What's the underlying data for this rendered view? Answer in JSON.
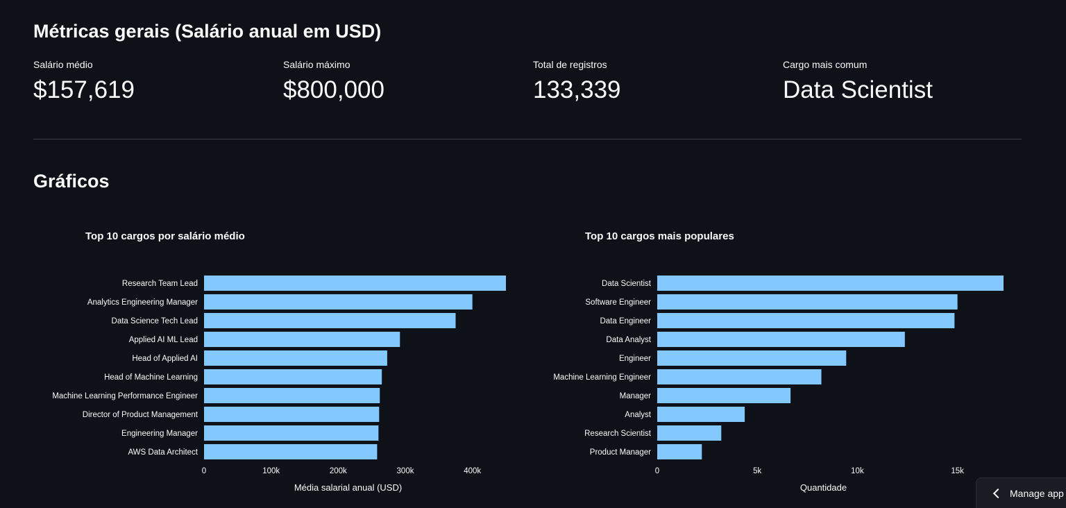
{
  "metrics_section": {
    "title": "Métricas gerais (Salário anual em USD)",
    "metrics": [
      {
        "label": "Salário médio",
        "value": "$157,619"
      },
      {
        "label": "Salário máximo",
        "value": "$800,000"
      },
      {
        "label": "Total de registros",
        "value": "133,339"
      },
      {
        "label": "Cargo mais comum",
        "value": "Data Scientist"
      }
    ]
  },
  "graphs_section": {
    "title": "Gráficos"
  },
  "manage_app": {
    "label": "Manage app",
    "icon": "chevron-left-icon"
  },
  "colors": {
    "background": "#0e1117",
    "bar": "#83c9ff",
    "text": "#fafafa"
  },
  "chart_data": [
    {
      "type": "bar",
      "orientation": "horizontal",
      "title": "Top 10 cargos por salário médio",
      "xlabel": "Média salarial anual (USD)",
      "ylabel": "",
      "xlim": [
        0,
        450000
      ],
      "xticks": [
        0,
        100000,
        200000,
        300000,
        400000
      ],
      "xtick_labels": [
        "0",
        "100k",
        "200k",
        "300k",
        "400k"
      ],
      "categories": [
        "Research Team Lead",
        "Analytics Engineering Manager",
        "Data Science Tech Lead",
        "Applied AI ML Lead",
        "Head of Applied AI",
        "Head of Machine Learning",
        "Machine Learning Performance Engineer",
        "Director of Product Management",
        "Engineering Manager",
        "AWS Data Architect"
      ],
      "values": [
        450000,
        400000,
        375000,
        292000,
        273000,
        265000,
        262000,
        261000,
        260000,
        258000
      ]
    },
    {
      "type": "bar",
      "orientation": "horizontal",
      "title": "Top 10 cargos mais populares",
      "xlabel": "Quantidade",
      "ylabel": "",
      "xlim": [
        0,
        17300
      ],
      "xticks": [
        0,
        5000,
        10000,
        15000
      ],
      "xtick_labels": [
        "0",
        "5k",
        "10k",
        "15k"
      ],
      "categories": [
        "Data Scientist",
        "Software Engineer",
        "Data Engineer",
        "Data Analyst",
        "Engineer",
        "Machine Learning Engineer",
        "Manager",
        "Analyst",
        "Research Scientist",
        "Product Manager"
      ],
      "values": [
        17300,
        15000,
        14850,
        12370,
        9440,
        8200,
        6660,
        4370,
        3200,
        2230
      ]
    }
  ]
}
